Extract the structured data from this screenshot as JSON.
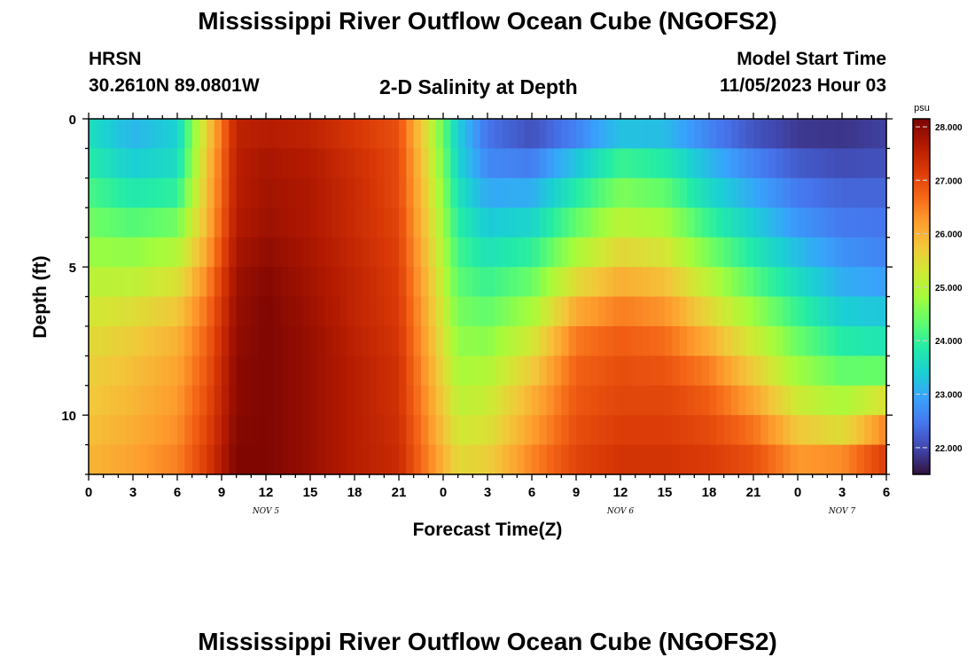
{
  "page": {
    "title_top": "Mississippi River Outflow Ocean Cube (NGOFS2)",
    "title_bottom": "Mississippi River Outflow Ocean Cube (NGOFS2)"
  },
  "station": {
    "name": "HRSN",
    "coords": "30.2610N  89.0801W"
  },
  "model": {
    "label": "Model Start Time",
    "start": "11/05/2023 Hour 03"
  },
  "colors": {
    "colormap": [
      "#30123b",
      "#4145ab",
      "#4675ed",
      "#39a2fc",
      "#1bcfd4",
      "#24eca6",
      "#61fc6c",
      "#a4fc3b",
      "#d1e834",
      "#f3c63a",
      "#fe9b2d",
      "#f36315",
      "#d93806",
      "#b11901",
      "#7a0402"
    ]
  },
  "chart_data": {
    "type": "heatmap",
    "subtitle": "2-D Salinity at Depth",
    "xlabel": "Forecast Time(Z)",
    "ylabel": "Depth (ft)",
    "colorbar_unit": "psu",
    "colorbar_range": [
      21.5,
      28.15
    ],
    "colorbar_ticks": [
      "28.000",
      "27.000",
      "26.000",
      "25.000",
      "24.000",
      "23.000",
      "22.000"
    ],
    "colorbar_tick_values": [
      28,
      27,
      26,
      25,
      24,
      23,
      22
    ],
    "x_range_hours": [
      0,
      54
    ],
    "x_tick_labels": [
      "0",
      "3",
      "6",
      "9",
      "12",
      "15",
      "18",
      "21",
      "0",
      "3",
      "6",
      "9",
      "12",
      "15",
      "18",
      "21",
      "0",
      "3",
      "6"
    ],
    "x_tick_hours": [
      0,
      3,
      6,
      9,
      12,
      15,
      18,
      21,
      24,
      27,
      30,
      33,
      36,
      39,
      42,
      45,
      48,
      51,
      54
    ],
    "day_labels": [
      {
        "text": "NOV 5",
        "hour": 12
      },
      {
        "text": "NOV 6",
        "hour": 36
      },
      {
        "text": "NOV 7",
        "hour": 51
      }
    ],
    "y_range_ft": [
      0,
      12
    ],
    "y_tick_labels": [
      "0",
      "5",
      "10"
    ],
    "y_tick_values": [
      0,
      5,
      10
    ],
    "depth_levels_ft": [
      0.25,
      1.0,
      2.0,
      3.0,
      4.0,
      5.0,
      6.0,
      7.0,
      8.0,
      9.0,
      10.0,
      11.0,
      11.75
    ],
    "time_hours": [
      0,
      3,
      6,
      8,
      10,
      12,
      15,
      18,
      21,
      23,
      25,
      27,
      30,
      33,
      36,
      39,
      42,
      45,
      48,
      51,
      54
    ],
    "salinity_psu": [
      [
        23.6,
        23.1,
        23.4,
        25.6,
        27.5,
        27.6,
        27.5,
        27.2,
        26.9,
        25.3,
        23.4,
        22.4,
        22.0,
        22.4,
        23.0,
        23.0,
        22.4,
        22.0,
        21.8,
        21.8,
        21.9
      ],
      [
        23.7,
        23.2,
        23.5,
        25.7,
        27.6,
        27.7,
        27.6,
        27.3,
        27.0,
        25.4,
        23.4,
        22.5,
        22.3,
        23.0,
        23.8,
        23.6,
        23.0,
        22.4,
        22.0,
        21.9,
        22.0
      ],
      [
        24.0,
        23.6,
        23.7,
        25.8,
        27.6,
        27.8,
        27.7,
        27.4,
        27.0,
        25.5,
        23.6,
        22.8,
        22.8,
        23.6,
        24.3,
        24.1,
        23.3,
        22.8,
        22.4,
        22.2,
        22.2
      ],
      [
        24.3,
        24.0,
        24.2,
        25.9,
        27.6,
        27.8,
        27.7,
        27.4,
        27.0,
        25.6,
        23.8,
        23.2,
        23.3,
        24.1,
        24.8,
        24.6,
        23.8,
        23.2,
        22.6,
        22.4,
        22.4
      ],
      [
        24.6,
        24.5,
        24.7,
        26.0,
        27.7,
        27.9,
        27.7,
        27.4,
        27.1,
        25.7,
        24.0,
        23.5,
        23.7,
        24.6,
        25.3,
        25.1,
        24.2,
        23.6,
        23.0,
        22.6,
        22.5
      ],
      [
        24.9,
        24.9,
        25.2,
        26.3,
        27.8,
        28.0,
        27.8,
        27.5,
        27.1,
        25.8,
        24.2,
        23.9,
        24.2,
        25.2,
        25.8,
        25.6,
        24.8,
        24.0,
        23.4,
        22.9,
        22.7
      ],
      [
        25.2,
        25.3,
        25.6,
        26.5,
        27.9,
        28.1,
        27.8,
        27.5,
        27.2,
        25.9,
        24.4,
        24.2,
        24.6,
        25.8,
        26.3,
        26.1,
        25.3,
        24.5,
        23.8,
        23.2,
        23.1
      ],
      [
        25.4,
        25.6,
        25.9,
        26.7,
        27.9,
        28.1,
        27.9,
        27.5,
        27.2,
        26.0,
        24.6,
        24.5,
        25.1,
        26.4,
        26.7,
        26.5,
        25.8,
        25.0,
        24.2,
        23.6,
        23.5
      ],
      [
        25.6,
        25.8,
        26.1,
        26.8,
        28.0,
        28.1,
        27.9,
        27.6,
        27.3,
        26.1,
        24.8,
        24.8,
        25.5,
        26.7,
        26.9,
        26.8,
        26.3,
        25.5,
        24.6,
        24.1,
        24.0
      ],
      [
        25.7,
        25.9,
        26.2,
        26.9,
        28.0,
        28.1,
        27.9,
        27.6,
        27.3,
        26.2,
        25.0,
        25.1,
        25.9,
        26.8,
        27.0,
        27.0,
        26.7,
        25.9,
        25.0,
        24.6,
        24.8
      ],
      [
        25.8,
        26.0,
        26.3,
        27.0,
        28.0,
        28.1,
        27.9,
        27.6,
        27.3,
        26.3,
        25.2,
        25.3,
        26.1,
        26.9,
        27.1,
        27.1,
        26.9,
        26.4,
        25.5,
        25.2,
        26.0
      ],
      [
        25.9,
        26.1,
        26.4,
        27.1,
        28.1,
        28.1,
        27.9,
        27.6,
        27.4,
        26.4,
        25.4,
        25.5,
        26.3,
        27.0,
        27.2,
        27.2,
        27.1,
        26.8,
        26.0,
        25.7,
        26.9
      ],
      [
        26.0,
        26.2,
        26.5,
        27.2,
        28.1,
        28.1,
        27.9,
        27.6,
        27.4,
        26.5,
        25.6,
        25.7,
        26.5,
        27.1,
        27.3,
        27.3,
        27.2,
        27.0,
        26.4,
        26.7,
        27.3
      ]
    ]
  }
}
